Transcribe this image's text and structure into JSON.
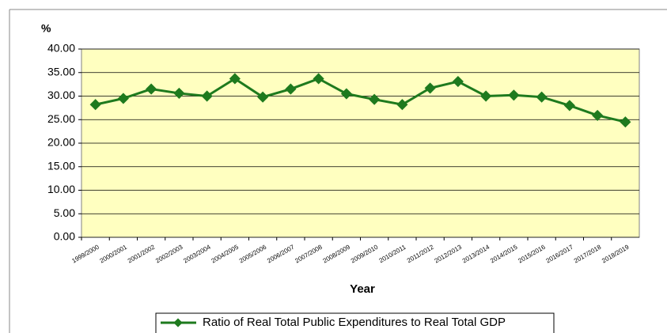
{
  "chart_data": {
    "type": "line",
    "y_label": "%",
    "x_label": "Year",
    "categories": [
      "1999/2000",
      "2000/2001",
      "2001/2002",
      "2002/2003",
      "2003/2004",
      "2004/2005",
      "2005/2006",
      "2006/2007",
      "2007/2008",
      "2008/2009",
      "2009/2010",
      "2010/2011",
      "2011/2012",
      "2012/2013",
      "2013/2014",
      "2014/2015",
      "2015/2016",
      "2016/2017",
      "2017/2018",
      "2018/2019"
    ],
    "series": [
      {
        "name": "Ratio of Real Total Public Expenditures to Real Total GDP",
        "color": "#1e7a1e",
        "values": [
          28.2,
          29.5,
          31.5,
          30.6,
          30.0,
          33.7,
          29.8,
          31.5,
          33.7,
          30.5,
          29.3,
          28.2,
          31.7,
          33.1,
          30.0,
          30.2,
          29.8,
          28.0,
          25.9,
          24.5
        ]
      }
    ],
    "ylim": [
      0,
      40
    ],
    "yticks": [
      {
        "value": 0,
        "label": "0.00"
      },
      {
        "value": 5,
        "label": "5.00"
      },
      {
        "value": 10,
        "label": "10.00"
      },
      {
        "value": 15,
        "label": "15.00"
      },
      {
        "value": 20,
        "label": "20.00"
      },
      {
        "value": 25,
        "label": "25.00"
      },
      {
        "value": 30,
        "label": "30.00"
      },
      {
        "value": 35,
        "label": "35.00"
      },
      {
        "value": 40,
        "label": "40.00"
      }
    ],
    "grid": true,
    "plot_background": "#ffffc0",
    "legend": "bottom"
  }
}
